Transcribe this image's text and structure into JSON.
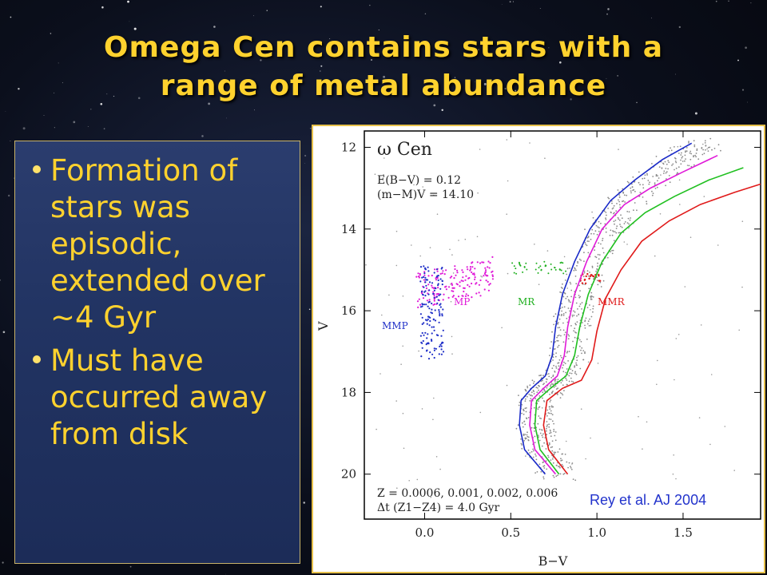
{
  "slide": {
    "title_line1": "Omega Cen contains stars with a",
    "title_line2": "range of metal abundance",
    "bullets": [
      "Formation of stars was episodic, extended over ~4 Gyr",
      "Must have occurred away from disk"
    ]
  },
  "figure": {
    "panel_label": "ω Cen",
    "param_ebv": "E(B−V) = 0.12",
    "param_dm": "(m−M)V = 14.10",
    "z_line": "Z = 0.0006, 0.001, 0.002, 0.006",
    "dt_line": "Δt (Z1−Z4) = 4.0 Gyr",
    "citation": "Rey et al. AJ 2004",
    "labels": {
      "mmp": "MMP",
      "mp": "MP",
      "mr": "MR",
      "mmr": "MMR"
    }
  },
  "chart_data": {
    "type": "scatter",
    "xlabel": "B−V",
    "ylabel": "V",
    "xlim": [
      -0.35,
      1.95
    ],
    "ylim": [
      21.1,
      11.6
    ],
    "y_inverted": true,
    "x_ticks": [
      "0.0",
      "0.5",
      "1.0",
      "1.5"
    ],
    "y_ticks": [
      "12",
      "14",
      "16",
      "18",
      "20"
    ],
    "series": [
      {
        "name": "",
        "color": "#1a2ac8",
        "kind": "isochrone",
        "x": [
          0.7,
          0.58,
          0.55,
          0.56,
          0.62,
          0.7,
          0.74,
          0.76,
          0.8,
          0.87,
          0.96,
          1.08,
          1.22,
          1.38,
          1.55
        ],
        "y": [
          20.0,
          19.4,
          18.8,
          18.2,
          17.9,
          17.6,
          17.1,
          16.4,
          15.6,
          14.8,
          14.0,
          13.3,
          12.8,
          12.3,
          11.9
        ]
      },
      {
        "name": "",
        "color": "#e01ad8",
        "kind": "isochrone",
        "x": [
          0.76,
          0.64,
          0.61,
          0.62,
          0.69,
          0.77,
          0.81,
          0.83,
          0.87,
          0.94,
          1.03,
          1.16,
          1.31,
          1.5,
          1.7
        ],
        "y": [
          20.0,
          19.4,
          18.8,
          18.2,
          17.9,
          17.6,
          17.1,
          16.4,
          15.6,
          14.8,
          14.0,
          13.4,
          13.0,
          12.6,
          12.2
        ]
      },
      {
        "name": "",
        "color": "#20c020",
        "kind": "isochrone",
        "x": [
          0.78,
          0.67,
          0.64,
          0.65,
          0.73,
          0.82,
          0.87,
          0.9,
          0.95,
          1.03,
          1.14,
          1.28,
          1.45,
          1.65,
          1.85
        ],
        "y": [
          20.0,
          19.4,
          18.8,
          18.2,
          17.9,
          17.6,
          17.1,
          16.4,
          15.6,
          14.8,
          14.1,
          13.6,
          13.2,
          12.8,
          12.5
        ]
      },
      {
        "name": "",
        "color": "#e01a1a",
        "kind": "isochrone",
        "x": [
          0.83,
          0.72,
          0.69,
          0.71,
          0.8,
          0.91,
          0.97,
          1.0,
          1.05,
          1.14,
          1.26,
          1.42,
          1.6,
          1.8,
          1.95
        ],
        "y": [
          20.0,
          19.4,
          18.8,
          18.2,
          17.9,
          17.7,
          17.2,
          16.5,
          15.7,
          15.0,
          14.3,
          13.8,
          13.4,
          13.1,
          12.9
        ]
      }
    ],
    "sequence_labels": [
      "MMP",
      "MP",
      "MR",
      "MMR"
    ]
  }
}
